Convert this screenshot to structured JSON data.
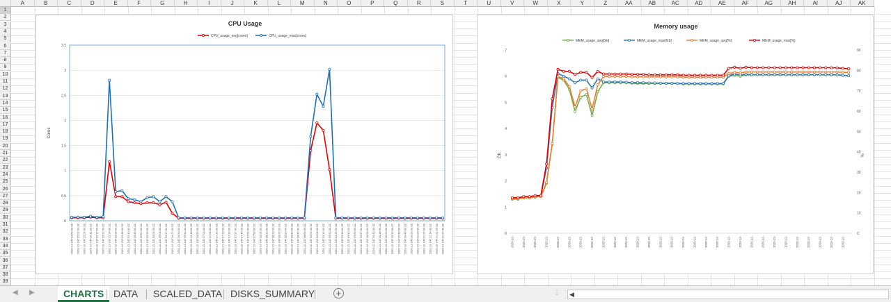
{
  "sheet": {
    "columns": [
      "A",
      "B",
      "C",
      "D",
      "E",
      "F",
      "G",
      "H",
      "I",
      "J",
      "K",
      "L",
      "M",
      "N",
      "O",
      "P",
      "Q",
      "R",
      "S",
      "T",
      "U",
      "V",
      "W",
      "X",
      "Y",
      "Z",
      "AA",
      "AB",
      "AC",
      "AD",
      "AE",
      "AF",
      "AG",
      "AH",
      "AI",
      "AJ",
      "AK"
    ],
    "row_count": 39,
    "selected_row": 1
  },
  "tabs": {
    "items": [
      "CHARTS",
      "DATA",
      "SCALED_DATA",
      "DISKS_SUMMARY"
    ],
    "active": 0,
    "add_label": "+",
    "ellipsis": "⋮",
    "scroll_left": "◀"
  },
  "chart_data": [
    {
      "type": "line",
      "title": "CPU Usage",
      "ylabel": "Cores",
      "xlabel": "",
      "ylim": [
        0,
        3.5
      ],
      "yticks": [
        "0",
        "0.5",
        "1",
        "1.5",
        "2",
        "2.5",
        "3",
        "3.5"
      ],
      "x": [
        "2020-12-24T14:56:00.0Z",
        "2020-12-24T15:01:00.0Z",
        "2020-12-24T15:05:00.0Z",
        "2020-12-24T15:11:00.0Z",
        "2020-12-24T15:17:00.0Z",
        "2020-12-24T15:22:00.0Z",
        "2020-12-24T15:24:00.0Z",
        "2020-12-24T15:28:00.0Z",
        "2020-12-24T15:38:00.0Z",
        "2020-12-24T15:40:00.0Z",
        "2020-12-24T15:45:00.0Z",
        "2020-12-24T15:52:00.0Z",
        "2020-12-24T15:59:00.0Z",
        "2020-12-24T16:05:00.0Z",
        "2020-12-24T16:09:00.0Z",
        "2020-12-24T16:17:00.0Z",
        "2020-12-24T16:27:00.0Z",
        "2020-12-24T16:34:00.0Z",
        "2020-12-24T16:41:00.0Z",
        "2020-12-24T16:48:00.0Z",
        "2020-12-24T16:55:00.0Z",
        "2020-12-24T17:02:00.0Z",
        "2020-12-24T17:09:00.0Z",
        "2020-12-24T17:16:00.0Z",
        "2020-12-24T17:23:00.0Z",
        "2020-12-24T17:30:00.0Z",
        "2020-12-24T17:37:00.0Z",
        "2020-12-24T17:44:00.0Z",
        "2020-12-24T17:51:00.0Z",
        "2020-12-24T17:58:00.0Z",
        "2020-12-24T18:05:00.0Z",
        "2020-12-24T18:12:00.0Z",
        "2020-12-24T18:19:00.0Z",
        "2020-12-24T18:26:00.0Z",
        "2020-12-24T18:33:00.0Z",
        "2020-12-24T18:40:00.0Z",
        "2020-12-24T18:47:00.0Z",
        "2020-12-24T18:54:00.0Z",
        "2020-12-24T19:01:00.0Z",
        "2020-12-24T19:08:00.0Z",
        "2020-12-24T19:15:00.0Z",
        "2020-12-24T19:22:00.0Z",
        "2020-12-24T19:29:00.0Z",
        "2020-12-24T19:36:00.0Z",
        "2020-12-24T19:43:00.0Z",
        "2020-12-24T19:50:00.0Z",
        "2020-12-24T19:57:00.0Z",
        "2020-12-24T20:04:00.0Z",
        "2020-12-24T20:11:00.0Z",
        "2020-12-24T20:18:00.0Z",
        "2020-12-24T20:25:00.0Z",
        "2020-12-24T20:32:00.0Z",
        "2020-12-24T20:39:00.0Z",
        "2020-12-24T20:46:00.0Z",
        "2020-12-24T20:53:00.0Z",
        "2020-12-24T21:00:00.0Z",
        "2020-12-24T21:07:00.0Z",
        "2020-12-24T21:14:00.0Z",
        "2020-12-24T21:21:00.0Z",
        "2020-12-24T21:27:00.0Z"
      ],
      "series": [
        {
          "name": "CPU_usage_avg[cores]",
          "color": "#e00000",
          "values": [
            0.06,
            0.06,
            0.06,
            0.07,
            0.06,
            0.06,
            1.18,
            0.48,
            0.48,
            0.38,
            0.36,
            0.34,
            0.36,
            0.36,
            0.32,
            0.37,
            0.15,
            0.05,
            0.05,
            0.05,
            0.05,
            0.05,
            0.05,
            0.05,
            0.05,
            0.05,
            0.05,
            0.05,
            0.05,
            0.05,
            0.05,
            0.05,
            0.05,
            0.05,
            0.05,
            0.05,
            0.05,
            0.05,
            1.4,
            1.95,
            1.8,
            1.02,
            0.05,
            0.05,
            0.05,
            0.05,
            0.05,
            0.05,
            0.05,
            0.05,
            0.05,
            0.05,
            0.05,
            0.05,
            0.05,
            0.05,
            0.05,
            0.05,
            0.05,
            0.05
          ]
        },
        {
          "name": "CPU_usage_max[cores]",
          "color": "#1f6fb5",
          "values": [
            0.07,
            0.07,
            0.07,
            0.09,
            0.07,
            0.08,
            2.8,
            0.58,
            0.6,
            0.44,
            0.42,
            0.38,
            0.46,
            0.48,
            0.38,
            0.48,
            0.38,
            0.06,
            0.06,
            0.06,
            0.06,
            0.06,
            0.06,
            0.06,
            0.06,
            0.06,
            0.06,
            0.06,
            0.06,
            0.06,
            0.06,
            0.06,
            0.06,
            0.06,
            0.06,
            0.06,
            0.06,
            0.06,
            1.68,
            2.52,
            2.28,
            3.02,
            0.06,
            0.06,
            0.06,
            0.06,
            0.06,
            0.06,
            0.06,
            0.06,
            0.06,
            0.06,
            0.06,
            0.06,
            0.06,
            0.06,
            0.06,
            0.06,
            0.06,
            0.06
          ]
        }
      ]
    },
    {
      "type": "line",
      "title": "Memory usage",
      "ylabel": "Gb",
      "y2label": "%",
      "xlabel": "",
      "ylim": [
        0,
        7
      ],
      "y2lim": [
        0,
        90
      ],
      "yticks": [
        "0",
        "1",
        "2",
        "3",
        "4",
        "5",
        "6",
        "7"
      ],
      "y2ticks": [
        "0",
        "10",
        "20",
        "30",
        "40",
        "50",
        "60",
        "70",
        "80",
        "90"
      ],
      "x_label_text": "2020-12-",
      "x_count": 60,
      "series": [
        {
          "name": "MEM_usage_avg[Gb]",
          "color": "#70ad47",
          "axis": "left",
          "values": [
            1.3,
            1.3,
            1.35,
            1.35,
            1.38,
            1.4,
            1.9,
            3.4,
            5.95,
            5.85,
            5.5,
            4.65,
            5.2,
            5.3,
            4.5,
            5.4,
            5.75,
            5.75,
            5.75,
            5.75,
            5.75,
            5.73,
            5.72,
            5.72,
            5.72,
            5.72,
            5.72,
            5.72,
            5.72,
            5.72,
            5.7,
            5.7,
            5.7,
            5.7,
            5.7,
            5.7,
            5.7,
            5.7,
            6.0,
            6.03,
            6.0,
            6.05,
            6.05,
            6.05,
            6.05,
            6.05,
            6.05,
            6.05,
            6.05,
            6.05,
            6.05,
            6.05,
            6.05,
            6.05,
            6.05,
            6.05,
            6.05,
            6.05,
            6.03,
            6.02
          ]
        },
        {
          "name": "MEM_usage_max[Gb]",
          "color": "#2e75b6",
          "axis": "left",
          "values": [
            1.33,
            1.33,
            1.38,
            1.38,
            1.4,
            1.42,
            2.5,
            4.8,
            6.1,
            6.0,
            5.9,
            5.75,
            5.85,
            5.85,
            5.55,
            5.9,
            5.78,
            5.78,
            5.78,
            5.78,
            5.77,
            5.75,
            5.75,
            5.75,
            5.74,
            5.74,
            5.73,
            5.73,
            5.73,
            5.72,
            5.72,
            5.72,
            5.72,
            5.72,
            5.72,
            5.72,
            5.72,
            5.72,
            6.02,
            6.08,
            6.05,
            6.07,
            6.06,
            6.06,
            6.06,
            6.06,
            6.06,
            6.06,
            6.06,
            6.06,
            6.06,
            6.06,
            6.06,
            6.06,
            6.06,
            6.06,
            6.06,
            6.05,
            6.03,
            6.02
          ]
        },
        {
          "name": "MEM_usage_avg[%]",
          "color": "#ed7d31",
          "axis": "right",
          "values": [
            17,
            17,
            17.5,
            17.5,
            18,
            18,
            25,
            44,
            77,
            76,
            72,
            62,
            70,
            71,
            61,
            73,
            77,
            77,
            77,
            77,
            77,
            76.8,
            76.8,
            76.8,
            76.8,
            76.8,
            76.8,
            76.8,
            76.8,
            76.8,
            76.6,
            76.6,
            76.6,
            76.6,
            76.6,
            76.6,
            76.6,
            76.6,
            78.5,
            79,
            78.8,
            79.2,
            79.2,
            79.2,
            79.2,
            79.2,
            79.2,
            79.2,
            79.2,
            79.2,
            79.2,
            79.2,
            79.2,
            79.2,
            79.2,
            79.2,
            79.2,
            79.2,
            79,
            79
          ]
        },
        {
          "name": "MEM_usage_max[%]",
          "color": "#e00000",
          "axis": "right",
          "values": [
            17.5,
            17.5,
            18,
            18,
            18.5,
            18.5,
            34,
            66,
            80.5,
            79.5,
            79.5,
            78,
            79,
            79,
            76.5,
            79.5,
            78.2,
            78.2,
            78.2,
            78.2,
            78.2,
            78,
            78,
            78,
            77.8,
            77.8,
            77.8,
            77.8,
            77.8,
            77.8,
            77.6,
            77.6,
            77.6,
            77.6,
            77.6,
            77.6,
            77.6,
            77.6,
            81,
            81.5,
            81,
            81.5,
            81.3,
            81.3,
            81.3,
            81.3,
            81.3,
            81.3,
            81.3,
            81.3,
            81.3,
            81.3,
            81.3,
            81.3,
            81.3,
            81.3,
            81.3,
            81.2,
            81,
            80.8
          ]
        }
      ]
    }
  ]
}
